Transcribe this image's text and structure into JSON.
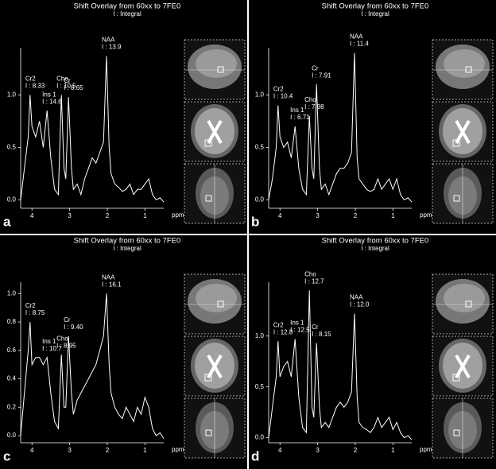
{
  "chart_data": [
    {
      "type": "line",
      "panel": "a",
      "title": "Shift Overlay from 60xx to 7FE0",
      "subtitle": "I : Integral",
      "xlabel": "ppm",
      "color": "#ffffff",
      "x": [
        4.3,
        4.2,
        4.1,
        4.05,
        4.0,
        3.9,
        3.8,
        3.7,
        3.6,
        3.5,
        3.4,
        3.3,
        3.22,
        3.15,
        3.1,
        3.03,
        2.95,
        2.9,
        2.8,
        2.7,
        2.6,
        2.5,
        2.4,
        2.3,
        2.2,
        2.1,
        2.02,
        1.95,
        1.9,
        1.8,
        1.7,
        1.6,
        1.5,
        1.4,
        1.3,
        1.2,
        1.1,
        1.0,
        0.9,
        0.8,
        0.7,
        0.6,
        0.5
      ],
      "values": [
        0.0,
        0.3,
        0.6,
        1.0,
        0.7,
        0.6,
        0.75,
        0.5,
        0.85,
        0.4,
        0.1,
        0.05,
        1.0,
        0.3,
        0.2,
        0.98,
        0.3,
        0.1,
        0.15,
        0.05,
        0.2,
        0.3,
        0.4,
        0.35,
        0.45,
        0.55,
        1.37,
        0.5,
        0.25,
        0.15,
        0.12,
        0.08,
        0.1,
        0.15,
        0.05,
        0.1,
        0.1,
        0.15,
        0.2,
        0.05,
        0.0,
        0.02,
        -0.02
      ],
      "xlim": [
        4.3,
        0.5
      ],
      "xticks": [
        4,
        3,
        2,
        1
      ],
      "ylim": [
        -0.08,
        1.45
      ],
      "yticks": [
        {
          "value": 0,
          "label": "0.0"
        },
        0.5,
        {
          "value": 1,
          "label": "1.0"
        }
      ],
      "annotations": [
        {
          "label": "Cr2",
          "text": "I : 8.33",
          "x": 4.05
        },
        {
          "label": "Ins 1",
          "text": "I : 14.6",
          "x": 3.6
        },
        {
          "label": "Cho",
          "text": "I : 10.5",
          "x": 3.22
        },
        {
          "label": "Cr",
          "text": "I : 8.65",
          "x": 3.03
        },
        {
          "label": "NAA",
          "text": "I : 13.9",
          "x": 2.02
        }
      ]
    },
    {
      "type": "line",
      "panel": "b",
      "title": "Shift Overlay from 60xx to 7FE0",
      "subtitle": "I : Integral",
      "xlabel": "ppm",
      "color": "#ffffff",
      "x": [
        4.3,
        4.2,
        4.1,
        4.05,
        4.0,
        3.9,
        3.8,
        3.7,
        3.6,
        3.5,
        3.4,
        3.3,
        3.22,
        3.15,
        3.1,
        3.03,
        2.95,
        2.9,
        2.8,
        2.7,
        2.6,
        2.5,
        2.4,
        2.3,
        2.2,
        2.1,
        2.02,
        1.95,
        1.9,
        1.8,
        1.7,
        1.6,
        1.5,
        1.4,
        1.3,
        1.2,
        1.1,
        1.0,
        0.9,
        0.8,
        0.7,
        0.6,
        0.5
      ],
      "values": [
        0.0,
        0.2,
        0.5,
        0.9,
        0.6,
        0.5,
        0.55,
        0.4,
        0.7,
        0.3,
        0.1,
        0.05,
        0.8,
        0.3,
        0.2,
        1.1,
        0.3,
        0.1,
        0.15,
        0.05,
        0.15,
        0.25,
        0.3,
        0.3,
        0.35,
        0.45,
        1.4,
        0.4,
        0.2,
        0.15,
        0.1,
        0.08,
        0.1,
        0.2,
        0.1,
        0.15,
        0.2,
        0.1,
        0.2,
        0.05,
        0.0,
        0.02,
        -0.02
      ],
      "xlim": [
        4.3,
        0.5
      ],
      "xticks": [
        4,
        3,
        2,
        1
      ],
      "ylim": [
        -0.08,
        1.45
      ],
      "yticks": [
        {
          "value": 0,
          "label": "0.0"
        },
        0.5,
        {
          "value": 1,
          "label": "1.0"
        }
      ],
      "annotations": [
        {
          "label": "Cr2",
          "text": "I : 10.4",
          "x": 4.05
        },
        {
          "label": "Ins 1",
          "text": "I : 6.71",
          "x": 3.6
        },
        {
          "label": "Cho",
          "text": "I : 7.98",
          "x": 3.22
        },
        {
          "label": "Cr",
          "text": "I : 7.91",
          "x": 3.03
        },
        {
          "label": "NAA",
          "text": "I : 11.4",
          "x": 2.02
        }
      ]
    },
    {
      "type": "line",
      "panel": "c",
      "title": "Shift Overlay from 60xx to 7FE0",
      "subtitle": "I : Integral",
      "xlabel": "ppm",
      "color": "#ffffff",
      "x": [
        4.3,
        4.2,
        4.1,
        4.05,
        4.0,
        3.9,
        3.8,
        3.7,
        3.6,
        3.5,
        3.4,
        3.3,
        3.22,
        3.15,
        3.1,
        3.03,
        2.95,
        2.9,
        2.8,
        2.7,
        2.6,
        2.5,
        2.4,
        2.3,
        2.2,
        2.1,
        2.02,
        1.95,
        1.9,
        1.8,
        1.7,
        1.6,
        1.5,
        1.4,
        1.3,
        1.2,
        1.1,
        1.0,
        0.9,
        0.8,
        0.7,
        0.6,
        0.5
      ],
      "values": [
        0.0,
        0.3,
        0.6,
        0.8,
        0.5,
        0.55,
        0.55,
        0.5,
        0.55,
        0.3,
        0.1,
        0.05,
        0.57,
        0.2,
        0.2,
        0.7,
        0.3,
        0.15,
        0.25,
        0.3,
        0.35,
        0.4,
        0.45,
        0.5,
        0.6,
        0.7,
        1.0,
        0.5,
        0.3,
        0.2,
        0.15,
        0.12,
        0.2,
        0.15,
        0.1,
        0.2,
        0.15,
        0.27,
        0.2,
        0.05,
        0.0,
        0.02,
        -0.02
      ],
      "xlim": [
        4.3,
        0.5
      ],
      "xticks": [
        4,
        3,
        2,
        1
      ],
      "ylim": [
        -0.05,
        1.08
      ],
      "yticks": [
        {
          "value": 0,
          "label": "0.0"
        },
        0.2,
        0.4,
        0.6,
        0.8,
        {
          "value": 1,
          "label": "1.0"
        }
      ],
      "annotations": [
        {
          "label": "Cr2",
          "text": "I : 8.75",
          "x": 4.05
        },
        {
          "label": "Ins 1",
          "text": "I : 10.7",
          "x": 3.6
        },
        {
          "label": "Cho",
          "text": "I : 8.95",
          "x": 3.22
        },
        {
          "label": "Cr",
          "text": "I : 9.40",
          "x": 3.03
        },
        {
          "label": "NAA",
          "text": "I : 16.1",
          "x": 2.02
        }
      ]
    },
    {
      "type": "line",
      "panel": "d",
      "title": "Shift Overlay from 60xx to 7FE0",
      "subtitle": "I : Integral",
      "xlabel": "ppm",
      "color": "#ffffff",
      "x": [
        4.3,
        4.2,
        4.1,
        4.05,
        4.0,
        3.9,
        3.8,
        3.7,
        3.6,
        3.5,
        3.4,
        3.3,
        3.22,
        3.15,
        3.1,
        3.03,
        2.95,
        2.9,
        2.8,
        2.7,
        2.6,
        2.5,
        2.4,
        2.3,
        2.2,
        2.1,
        2.02,
        1.95,
        1.9,
        1.8,
        1.7,
        1.6,
        1.5,
        1.4,
        1.3,
        1.2,
        1.1,
        1.0,
        0.9,
        0.8,
        0.7,
        0.6,
        0.5
      ],
      "values": [
        0.0,
        0.3,
        0.6,
        0.95,
        0.6,
        0.7,
        0.75,
        0.6,
        0.97,
        0.4,
        0.1,
        0.05,
        1.45,
        0.3,
        0.2,
        0.93,
        0.3,
        0.1,
        0.15,
        0.1,
        0.2,
        0.3,
        0.35,
        0.3,
        0.35,
        0.45,
        1.22,
        0.4,
        0.15,
        0.1,
        0.08,
        0.05,
        0.1,
        0.2,
        0.1,
        0.15,
        0.2,
        0.08,
        0.15,
        0.05,
        0.0,
        0.02,
        -0.02
      ],
      "xlim": [
        4.3,
        0.5
      ],
      "xticks": [
        4,
        3,
        2,
        1
      ],
      "ylim": [
        -0.05,
        1.53
      ],
      "yticks": [
        {
          "value": 0,
          "label": "0.0"
        },
        0.5,
        {
          "value": 1,
          "label": "1.0"
        }
      ],
      "annotations": [
        {
          "label": "Cr2",
          "text": "I : 12.8",
          "x": 4.05
        },
        {
          "label": "Ins 1",
          "text": "I : 12.5",
          "x": 3.6
        },
        {
          "label": "Cho",
          "text": "I : 12.7",
          "x": 3.22
        },
        {
          "label": "Cr",
          "text": "I : 8.15",
          "x": 3.03
        },
        {
          "label": "NAA",
          "text": "I : 12.0",
          "x": 2.02
        }
      ]
    }
  ]
}
